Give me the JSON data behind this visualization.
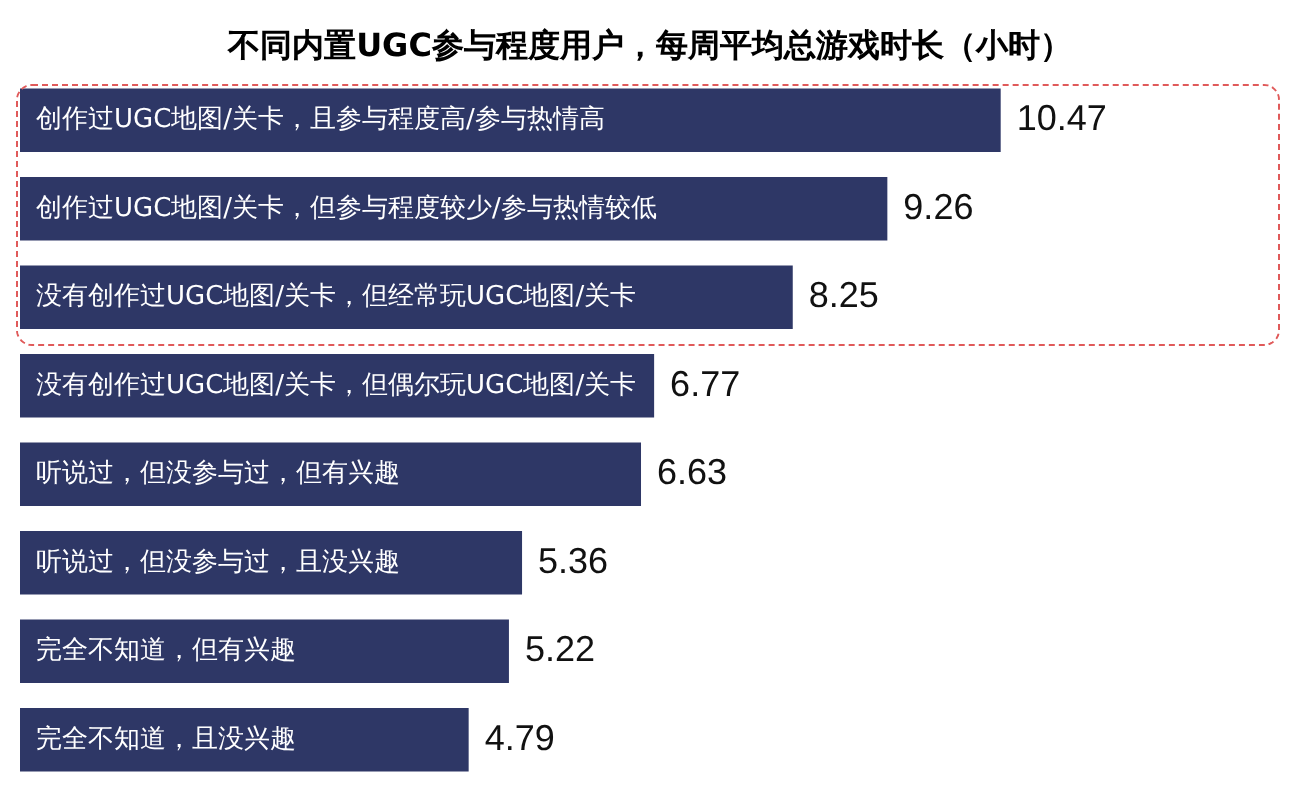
{
  "chart_data": {
    "type": "bar",
    "orientation": "horizontal",
    "title": "不同内置UGC参与程度用户，每周平均总游戏时长（小时）",
    "categories": [
      "创作过UGC地图/关卡，且参与程度高/参与热情高",
      "创作过UGC地图/关卡，但参与程度较少/参与热情较低",
      "没有创作过UGC地图/关卡，但经常玩UGC地图/关卡",
      "没有创作过UGC地图/关卡，但偶尔玩UGC地图/关卡",
      "听说过，但没参与过，但有兴趣",
      "听说过，但没参与过，且没兴趣",
      "完全不知道，但有兴趣",
      "完全不知道，且没兴趣"
    ],
    "values": [
      10.47,
      9.26,
      8.25,
      6.77,
      6.63,
      5.36,
      5.22,
      4.79
    ],
    "color": "#2e3766",
    "data_labels": true,
    "tick_labels": "y",
    "grid": false,
    "legend": false
  }
}
